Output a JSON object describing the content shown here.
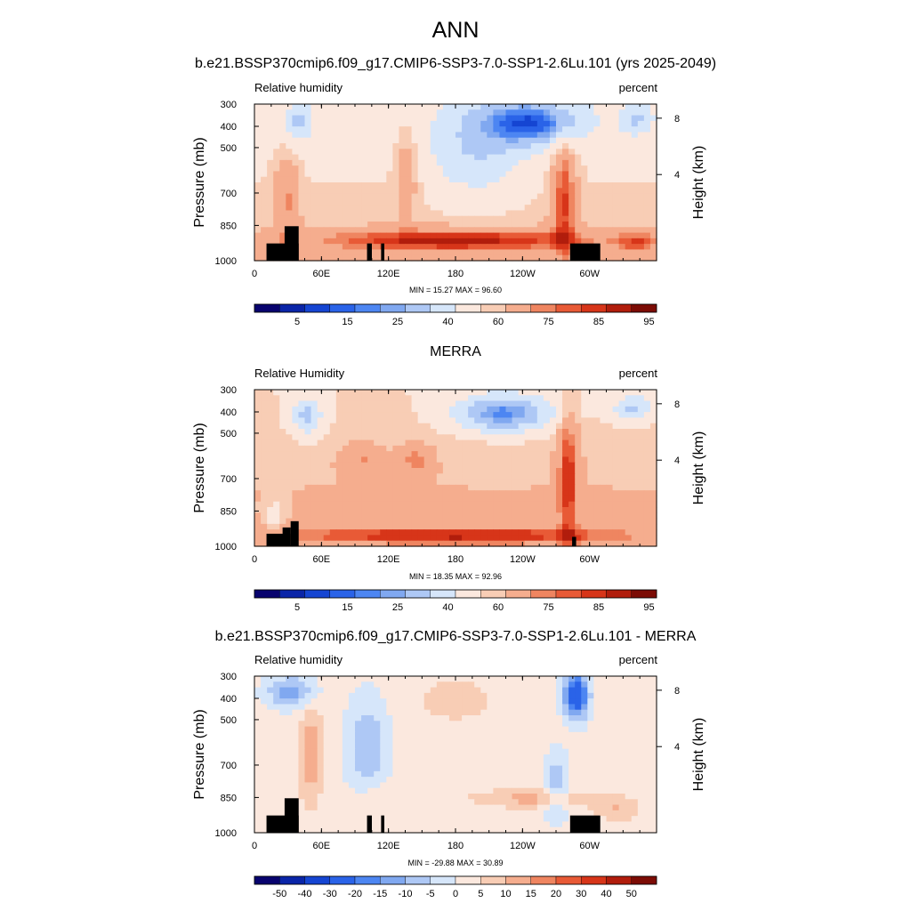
{
  "figure": {
    "title": "ANN"
  },
  "chart_data": [
    {
      "type": "heatmap",
      "title": "b.e21.BSSP370cmip6.f09_g17.CMIP6-SSP3-7.0-SSP1-2.6Lu.101 (yrs 2025-2049)",
      "left_label": "Relative humidity",
      "right_label": "percent",
      "ylabel": "Pressure (mb)",
      "y2label": "Height (km)",
      "xticks": [
        "0",
        "60E",
        "120E",
        "180",
        "120W",
        "60W"
      ],
      "yticks": [
        "300",
        "400",
        "500",
        "700",
        "850",
        "1000"
      ],
      "y2ticks": [
        "8",
        "4"
      ],
      "stats": "MIN = 15.27  MAX = 96.60",
      "colorbar_labels": [
        "5",
        "15",
        "25",
        "40",
        "60",
        "75",
        "85",
        "95"
      ],
      "min": 15.27,
      "max": 96.6
    },
    {
      "type": "heatmap",
      "title": "MERRA",
      "left_label": "Relative Humidity",
      "right_label": "percent",
      "ylabel": "Pressure (mb)",
      "y2label": "Height (km)",
      "xticks": [
        "0",
        "60E",
        "120E",
        "180",
        "120W",
        "60W"
      ],
      "yticks": [
        "300",
        "400",
        "500",
        "700",
        "850",
        "1000"
      ],
      "y2ticks": [
        "8",
        "4"
      ],
      "stats": "MIN = 18.35  MAX = 92.96",
      "colorbar_labels": [
        "5",
        "15",
        "25",
        "40",
        "60",
        "75",
        "85",
        "95"
      ],
      "min": 18.35,
      "max": 92.96
    },
    {
      "type": "heatmap",
      "title": "b.e21.BSSP370cmip6.f09_g17.CMIP6-SSP3-7.0-SSP1-2.6Lu.101 - MERRA",
      "left_label": "Relative humidity",
      "right_label": "percent",
      "ylabel": "Pressure (mb)",
      "y2label": "Height (km)",
      "xticks": [
        "0",
        "60E",
        "120E",
        "180",
        "120W",
        "60W"
      ],
      "yticks": [
        "300",
        "400",
        "500",
        "700",
        "850",
        "1000"
      ],
      "y2ticks": [
        "8",
        "4"
      ],
      "stats": "MIN = -29.88  MAX = 30.89",
      "colorbar_labels": [
        "-50",
        "-40",
        "-30",
        "-20",
        "-15",
        "-10",
        "-5",
        "0",
        "5",
        "10",
        "15",
        "20",
        "30",
        "40",
        "50"
      ],
      "min": -29.88,
      "max": 30.89
    }
  ],
  "palette": {
    "seq": [
      "#08036e",
      "#0a25a8",
      "#1545d2",
      "#2a63e8",
      "#4d86f2",
      "#80a8f0",
      "#aec8f5",
      "#d6e6fa",
      "#fbe8de",
      "#f8cdb5",
      "#f5ad8e",
      "#ef8560",
      "#e85a36",
      "#d73519",
      "#b11d0c",
      "#7c0c05"
    ],
    "dif": [
      "#08036e",
      "#0a25a8",
      "#1545d2",
      "#2a63e8",
      "#4d86f2",
      "#80a8f0",
      "#aec8f5",
      "#d6e6fa",
      "#fbe8de",
      "#f8cdb5",
      "#f5ad8e",
      "#ef8560",
      "#e85a36",
      "#d73519",
      "#b11d0c",
      "#7c0c05"
    ]
  }
}
